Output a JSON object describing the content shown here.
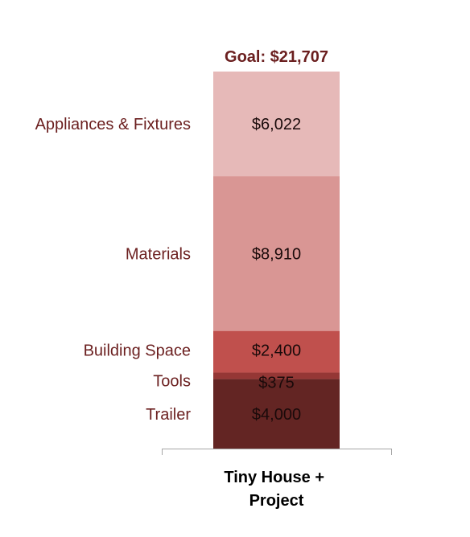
{
  "chart_data": {
    "type": "bar",
    "stacked": true,
    "categories": [
      "Tiny House + Project"
    ],
    "category_label_lines": [
      "Tiny House +",
      "Project"
    ],
    "series": [
      {
        "name": "Trailer",
        "values": [
          4000
        ],
        "color": "#632523",
        "value_label": "$4,000"
      },
      {
        "name": "Tools",
        "values": [
          375
        ],
        "color": "#953735",
        "value_label": "$375"
      },
      {
        "name": "Building Space",
        "values": [
          2400
        ],
        "color": "#c0504d",
        "value_label": "$2,400"
      },
      {
        "name": "Materials",
        "values": [
          8910
        ],
        "color": "#d99694",
        "value_label": "$8,910"
      },
      {
        "name": "Appliances & Fixtures",
        "values": [
          6022
        ],
        "color": "#e6b9b8",
        "value_label": "$6,022"
      }
    ],
    "total_label": "Goal: $21,707",
    "total": 21707,
    "ylim": [
      0,
      21707
    ],
    "grid": false,
    "legend": "none",
    "xlabel": "",
    "ylabel": ""
  },
  "colors": {
    "label_text": "#6b1f1f",
    "value_text": "#1a0a0a",
    "axis": "#a6a6a6"
  }
}
